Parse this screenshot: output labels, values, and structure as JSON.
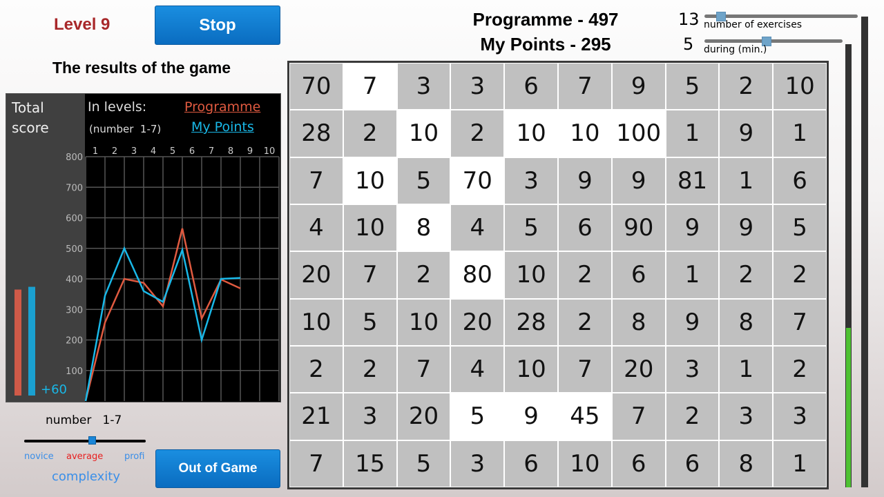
{
  "header": {
    "level": "Level 9",
    "stop_label": "Stop",
    "results_title": "The results of the game",
    "programme_score": "Programme - 497",
    "my_points": "My Points - 295"
  },
  "settings": {
    "exercises_value": "13",
    "exercises_label": "number of exercises",
    "exercises_fraction": 0.08,
    "duration_value": "5",
    "duration_label": "during (min.)",
    "duration_fraction": 0.44
  },
  "chart_panel": {
    "total_label_1": "Total",
    "total_label_2": "score",
    "in_levels": "In levels:",
    "number_range": "(number  1-7)",
    "delta": "+60",
    "total_programme": 365,
    "total_my_points": 374
  },
  "complexity": {
    "number_label": "number   1-7",
    "novice": "novice",
    "average": "average",
    "profi": "profi",
    "title": "complexity",
    "value_fraction": 0.56
  },
  "out_label": "Out of Game",
  "progress": {
    "time_fraction": 0.36
  },
  "colors": {
    "programme": "#e05a40",
    "my_points": "#19b8e8",
    "button": "#0a7ad0",
    "level": "#a8282a"
  },
  "grid": {
    "rows": [
      [
        70,
        7,
        3,
        3,
        6,
        7,
        9,
        5,
        2,
        10
      ],
      [
        28,
        2,
        10,
        2,
        10,
        10,
        100,
        1,
        9,
        1
      ],
      [
        7,
        10,
        5,
        70,
        3,
        9,
        9,
        81,
        1,
        6
      ],
      [
        4,
        10,
        8,
        4,
        5,
        6,
        90,
        9,
        9,
        5
      ],
      [
        20,
        7,
        2,
        80,
        10,
        2,
        6,
        1,
        2,
        2
      ],
      [
        10,
        5,
        10,
        20,
        28,
        2,
        8,
        9,
        8,
        7
      ],
      [
        2,
        2,
        7,
        4,
        10,
        7,
        20,
        3,
        1,
        2
      ],
      [
        21,
        3,
        20,
        5,
        9,
        45,
        7,
        2,
        3,
        3
      ],
      [
        7,
        15,
        5,
        3,
        6,
        10,
        6,
        6,
        8,
        1
      ]
    ],
    "highlighted": [
      [
        0,
        1
      ],
      [
        1,
        2
      ],
      [
        1,
        4
      ],
      [
        1,
        5
      ],
      [
        1,
        6
      ],
      [
        2,
        1
      ],
      [
        2,
        3
      ],
      [
        3,
        2
      ],
      [
        4,
        3
      ],
      [
        7,
        3
      ],
      [
        7,
        4
      ],
      [
        7,
        5
      ]
    ]
  },
  "chart_data": {
    "type": "line",
    "xlabel": "",
    "ylabel": "",
    "x_ticks": [
      "1",
      "2",
      "3",
      "4",
      "5",
      "6",
      "7",
      "8",
      "9",
      "10"
    ],
    "y_ticks": [
      "100",
      "200",
      "300",
      "400",
      "500",
      "600",
      "700",
      "800"
    ],
    "ylim": [
      0,
      800
    ],
    "grid": true,
    "legend": "top-right",
    "series": [
      {
        "name": "Programme",
        "values": [
          0,
          257,
          400,
          387,
          310,
          565,
          270,
          398,
          369
        ]
      },
      {
        "name": "My Points",
        "values": [
          0,
          345,
          500,
          360,
          325,
          495,
          200,
          400,
          403
        ]
      }
    ]
  }
}
